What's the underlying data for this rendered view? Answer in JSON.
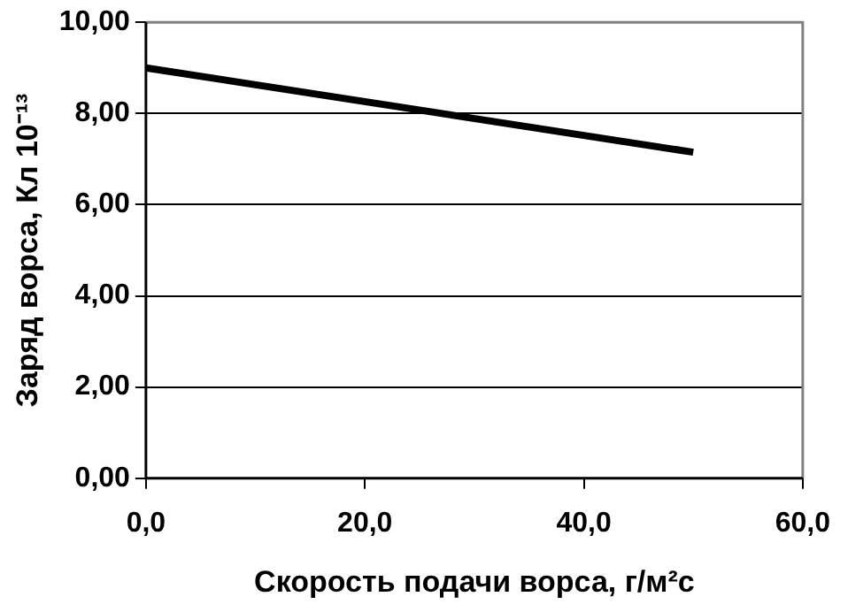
{
  "chart_data": {
    "type": "line",
    "xlabel": "Скорость подачи ворса, г/м²с",
    "ylabel": "Заряд ворса, Кл 10⁻¹³",
    "x": [
      0,
      50
    ],
    "series": [
      {
        "color": "#000000",
        "values": [
          9.0,
          7.15
        ]
      }
    ],
    "xlim": [
      0,
      60
    ],
    "xticks": [
      {
        "value": 0,
        "label": "0,0"
      },
      {
        "value": 20,
        "label": "20,0"
      },
      {
        "value": 40,
        "label": "40,0"
      },
      {
        "value": 60,
        "label": "60,0"
      }
    ],
    "ylim": [
      0,
      10
    ],
    "yticks": [
      {
        "value": 0,
        "label": "0,00"
      },
      {
        "value": 2,
        "label": "2,00"
      },
      {
        "value": 4,
        "label": "4,00"
      },
      {
        "value": 6,
        "label": "6,00"
      },
      {
        "value": 8,
        "label": "8,00"
      },
      {
        "value": 10,
        "label": "10,00"
      }
    ],
    "grid": "y",
    "legend": false,
    "marker": "none",
    "line_style": "solid"
  }
}
